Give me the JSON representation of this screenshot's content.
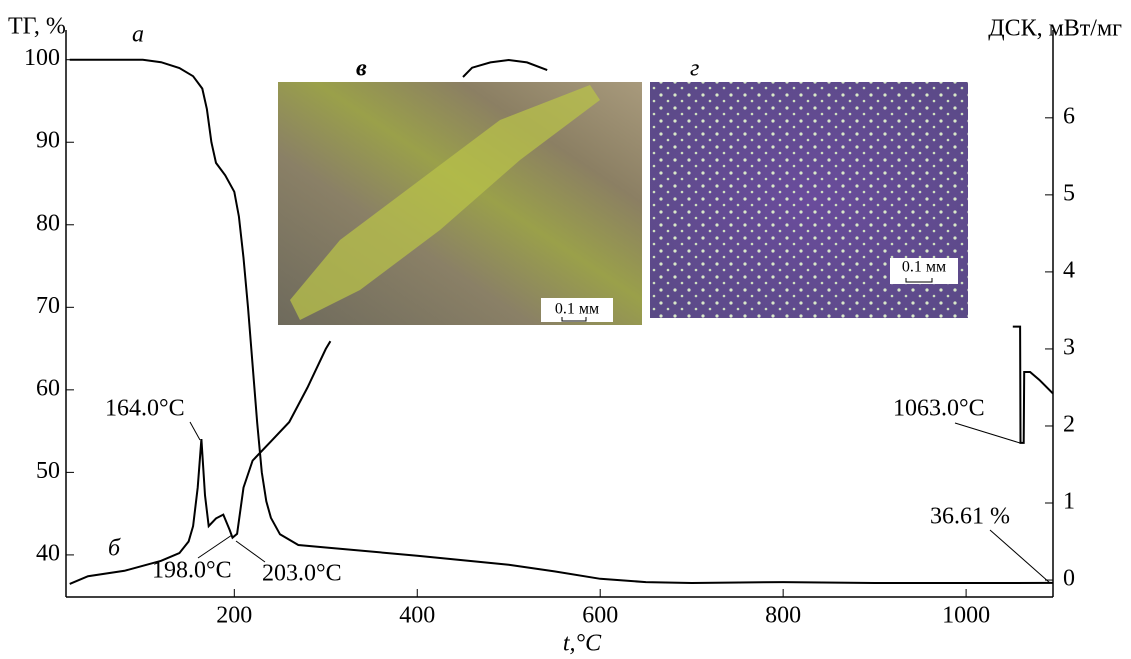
{
  "chart_data": {
    "type": "line",
    "y_label": "ТГ, %",
    "y2_label": "ДСК, мВт/мг",
    "x_label": "t,°C",
    "xlim": [
      16,
      1095
    ],
    "xticks": [
      200,
      400,
      600,
      800,
      1000
    ],
    "ylim": [
      34.9,
      103.6
    ],
    "yticks": [
      40,
      50,
      60,
      70,
      80,
      90,
      100
    ],
    "y2lim": [
      -0.22,
      7.14
    ],
    "y2ticks": [
      0,
      1,
      2,
      3,
      4,
      5,
      6
    ],
    "series": [
      {
        "name": "а",
        "color": "#000000",
        "x": [
          20,
          100,
          120,
          140,
          155,
          165,
          170,
          175,
          180,
          190,
          200,
          205,
          210,
          215,
          220,
          225,
          230,
          235,
          240,
          250,
          270,
          300,
          400,
          500,
          550,
          600,
          650,
          700,
          800,
          900,
          1000,
          1095
        ],
        "values": [
          100,
          100,
          99.7,
          99,
          98,
          96.5,
          94,
          90,
          87.5,
          86,
          84,
          81,
          76,
          70,
          63,
          56,
          50,
          46.5,
          44.5,
          42.5,
          41.2,
          40.9,
          39.9,
          38.8,
          38,
          37.1,
          36.7,
          36.6,
          36.7,
          36.6,
          36.6,
          36.61
        ]
      },
      {
        "name": "б",
        "color": "#000000",
        "axis": "y2",
        "x": [
          20,
          40,
          80,
          120,
          140,
          150,
          155,
          160,
          164,
          168,
          172,
          180,
          188,
          195,
          198,
          203,
          210,
          220,
          240,
          260,
          280,
          300,
          305,
          400,
          450,
          460,
          480,
          500,
          520,
          542,
          800,
          1051,
          1059,
          1059.5,
          1063,
          1063.5,
          1070,
          1080,
          1095
        ],
        "values": [
          -0.05,
          0.05,
          0.12,
          0.25,
          0.35,
          0.5,
          0.7,
          1.2,
          1.83,
          1.1,
          0.7,
          0.8,
          0.85,
          0.65,
          0.55,
          0.6,
          1.2,
          1.55,
          1.8,
          2.05,
          2.5,
          3.0,
          3.1,
          null,
          6.53,
          6.65,
          6.72,
          6.75,
          6.72,
          6.62,
          null,
          3.29,
          3.29,
          1.78,
          1.78,
          2.7,
          2.7,
          2.6,
          2.42
        ]
      }
    ],
    "annotations": [
      "164.0°C",
      "198.0°C",
      "203.0°C",
      "1063.0°C",
      "36.61 %"
    ],
    "insets": [
      {
        "label": "в",
        "scale": "0.1 мм"
      },
      {
        "label": "г",
        "scale": "0.1 мм"
      }
    ]
  }
}
